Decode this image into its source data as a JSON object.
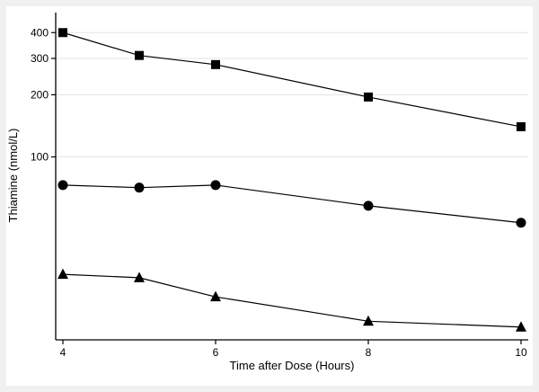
{
  "chart_data": {
    "type": "line",
    "title": "",
    "xlabel": "Time after Dose (Hours)",
    "ylabel": "Thiamine (nmol/L)",
    "x": [
      4,
      5,
      6,
      8,
      10
    ],
    "series": [
      {
        "name": "series-square",
        "marker": "square",
        "values": [
          400,
          310,
          280,
          195,
          140
        ]
      },
      {
        "name": "series-circle",
        "marker": "circle",
        "values": [
          73,
          71,
          73,
          58,
          48
        ]
      },
      {
        "name": "series-triangle",
        "marker": "triangle",
        "values": [
          27,
          26,
          21,
          16,
          15
        ]
      }
    ],
    "x_ticks": [
      4,
      6,
      8,
      10
    ],
    "y_ticks": [
      100,
      200,
      300,
      400
    ],
    "y_scale": "log",
    "xlim": [
      4,
      10
    ],
    "ylim": [
      13,
      500
    ],
    "grid": "horizontal",
    "legend": "none",
    "colors": {
      "figure_background": "#f0f0f0",
      "plot_background": "#ffffff",
      "grid": "#dbe7ee",
      "line": "#000000",
      "marker": "#000000",
      "axis": "#000000"
    }
  }
}
